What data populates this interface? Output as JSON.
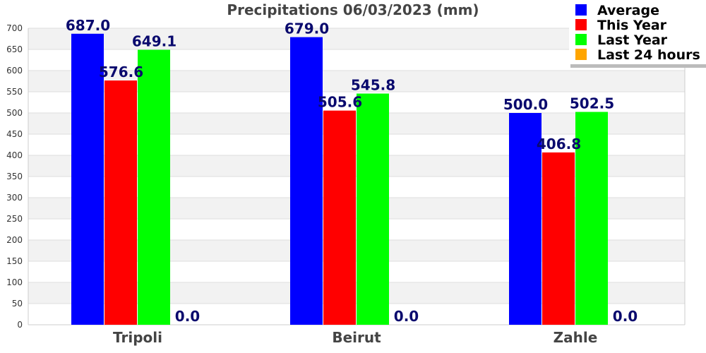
{
  "chart_data": {
    "type": "bar",
    "title": "Precipitations 06/03/2023 (mm)",
    "categories": [
      "Tripoli",
      "Beirut",
      "Zahle"
    ],
    "series": [
      {
        "name": "Average",
        "color": "#0000ff",
        "values": [
          687.0,
          679.0,
          500.0
        ],
        "labels": [
          "687.0",
          "679.0",
          "500.0"
        ]
      },
      {
        "name": "This Year",
        "color": "#ff0000",
        "values": [
          576.6,
          505.6,
          406.8
        ],
        "labels": [
          "576.6",
          "505.6",
          "406.8"
        ]
      },
      {
        "name": "Last Year",
        "color": "#00ff00",
        "values": [
          649.1,
          545.8,
          502.5
        ],
        "labels": [
          "649.1",
          "545.8",
          "502.5"
        ]
      },
      {
        "name": "Last 24 hours",
        "color": "#ffa500",
        "values": [
          0.0,
          0.0,
          0.0
        ],
        "labels": [
          "0.0",
          "0.0",
          "0.0"
        ]
      }
    ],
    "ylim": [
      0,
      700
    ],
    "yticks": [
      0,
      50,
      100,
      150,
      200,
      250,
      300,
      350,
      400,
      450,
      500,
      550,
      600,
      650,
      700
    ],
    "grid": true,
    "legend_position": "top-right",
    "xlabel": "",
    "ylabel": ""
  }
}
